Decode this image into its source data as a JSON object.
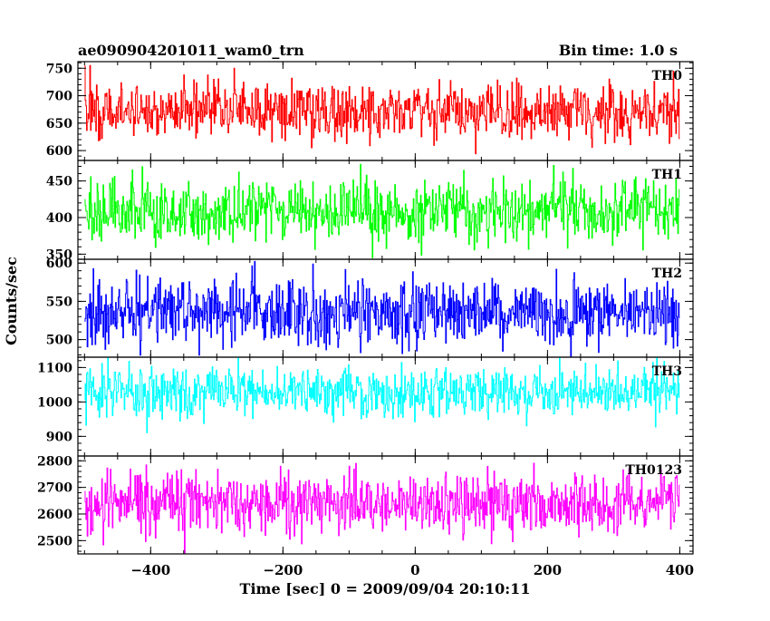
{
  "header": {
    "title": "ae090904201011_wam0_trn",
    "bin_time": "Bin time: 1.0 s"
  },
  "y_label": "Counts/sec",
  "x_label": "Time [sec] 0 = 2009/09/04 20:10:11",
  "chart_data": {
    "type": "line",
    "x_range": [
      -510,
      420
    ],
    "x_ticks": [
      -400,
      -200,
      0,
      200,
      400
    ],
    "x_tick_labels": [
      "−400",
      "−200",
      "0",
      "200",
      "400"
    ],
    "bin_time_sec": 1.0,
    "x_start": -500,
    "x_end": 399,
    "grid": false,
    "legend": "none",
    "panels": [
      {
        "name": "TH0",
        "color": "#ff0000",
        "ylim": [
          582,
          762
        ],
        "ticks": [
          600,
          650,
          700,
          750
        ],
        "mean": 672,
        "amplitude": 68
      },
      {
        "name": "TH1",
        "color": "#00ff00",
        "ylim": [
          343,
          478
        ],
        "ticks": [
          350,
          400,
          450
        ],
        "mean": 410,
        "amplitude": 55
      },
      {
        "name": "TH2",
        "color": "#0000ff",
        "ylim": [
          477,
          605
        ],
        "ticks": [
          500,
          550,
          600
        ],
        "mean": 535,
        "amplitude": 55
      },
      {
        "name": "TH3",
        "color": "#00ffff",
        "ylim": [
          843,
          1130
        ],
        "ticks": [
          900,
          1000,
          1100
        ],
        "mean": 1030,
        "amplitude": 95
      },
      {
        "name": "TH0123",
        "color": "#ff00ff",
        "ylim": [
          2450,
          2818
        ],
        "ticks": [
          2500,
          2600,
          2700,
          2800
        ],
        "mean": 2640,
        "amplitude": 150
      }
    ]
  }
}
